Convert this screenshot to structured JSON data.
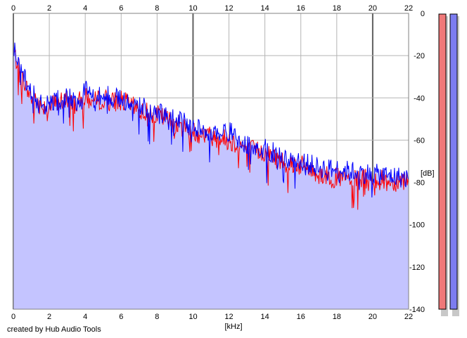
{
  "chart_data": {
    "type": "area",
    "xlabel": "[kHz]",
    "ylabel": "[dB]",
    "xlim": [
      0,
      22
    ],
    "ylim": [
      -140,
      0
    ],
    "x_ticks": [
      "0",
      "2",
      "4",
      "6",
      "8",
      "10",
      "12",
      "14",
      "16",
      "18",
      "20",
      "22"
    ],
    "y_ticks": [
      "0",
      "-20",
      "-40",
      "-60",
      "-80",
      "-100",
      "-120",
      "-140"
    ],
    "grid": true,
    "series": [
      {
        "color": "#ff0000",
        "x": [
          0,
          0.25,
          0.5,
          0.75,
          1,
          1.5,
          2,
          2.5,
          3,
          3.5,
          4,
          4.5,
          5,
          5.5,
          6,
          7,
          8,
          9,
          10,
          11,
          12,
          13,
          14,
          15,
          16,
          17,
          18,
          19,
          20,
          21,
          22
        ],
        "y": [
          -18,
          -24,
          -30,
          -36,
          -40,
          -43,
          -44,
          -42,
          -41,
          -43,
          -40,
          -42,
          -40,
          -42,
          -41,
          -46,
          -48,
          -52,
          -56,
          -58,
          -60,
          -64,
          -66,
          -70,
          -72,
          -76,
          -78,
          -79,
          -78,
          -80,
          -78
        ]
      },
      {
        "color": "#0000ff",
        "x": [
          0,
          0.25,
          0.5,
          0.75,
          1,
          1.5,
          2,
          2.5,
          3,
          3.5,
          4,
          4.5,
          5,
          5.5,
          6,
          7,
          8,
          9,
          10,
          11,
          12,
          13,
          14,
          15,
          16,
          17,
          18,
          19,
          20,
          21,
          22
        ],
        "y": [
          -16,
          -22,
          -28,
          -34,
          -38,
          -42,
          -44,
          -41,
          -40,
          -42,
          -36,
          -40,
          -38,
          -40,
          -40,
          -44,
          -47,
          -50,
          -54,
          -56,
          -56,
          -62,
          -64,
          -68,
          -70,
          -73,
          -74,
          -75,
          -76,
          -77,
          -78
        ]
      }
    ],
    "fill_color": "#c4c4ff",
    "level_meters": [
      {
        "color": "#ef7979"
      },
      {
        "color": "#7c7cf0"
      }
    ]
  },
  "footer": {
    "credit": "created by Hub Audio Tools"
  }
}
